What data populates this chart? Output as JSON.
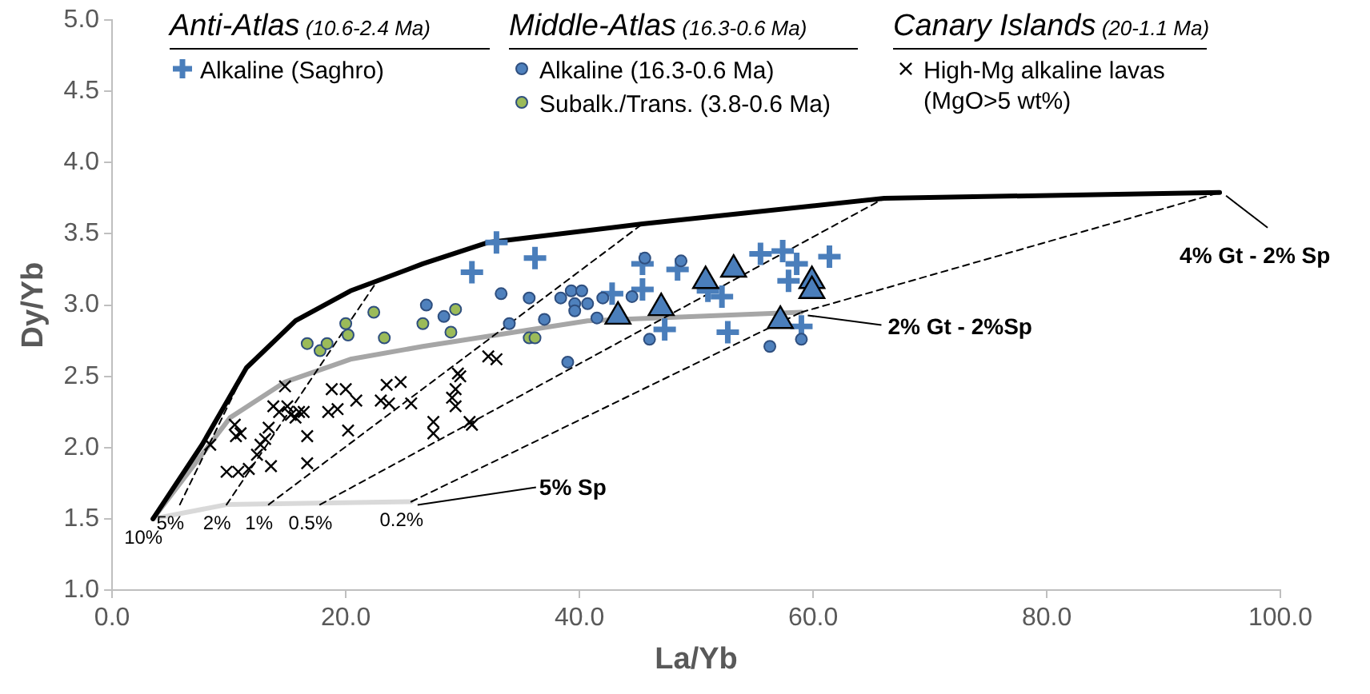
{
  "chart_data": {
    "type": "scatter",
    "xlabel": "La/Yb",
    "ylabel": "Dy/Yb",
    "xlim": [
      0,
      100
    ],
    "ylim": [
      1,
      5
    ],
    "xticks": [
      {
        "value": 0,
        "label": "0.0"
      },
      {
        "value": 20,
        "label": "20.0"
      },
      {
        "value": 40,
        "label": "40.0"
      },
      {
        "value": 60,
        "label": "60.0"
      },
      {
        "value": 80,
        "label": "80.0"
      },
      {
        "value": 100,
        "label": "100.0"
      }
    ],
    "yticks": [
      {
        "value": 1,
        "label": "1.0"
      },
      {
        "value": 1.5,
        "label": "1.5"
      },
      {
        "value": 2,
        "label": "2.0"
      },
      {
        "value": 2.5,
        "label": "2.5"
      },
      {
        "value": 3,
        "label": "3.0"
      },
      {
        "value": 3.5,
        "label": "3.5"
      },
      {
        "value": 4,
        "label": "4.0"
      },
      {
        "value": 4.5,
        "label": "4.5"
      },
      {
        "value": 5,
        "label": "5.0"
      }
    ],
    "legend": "top",
    "annotations": [
      "Anti-Atlas (10.6-2.4 Ma)",
      "Middle-Atlas (16.3-0.6 Ma)",
      "Canary Islands (20-1.1 Ma)",
      {
        "text": "4% Gt - 2% Sp",
        "x": 94.8,
        "y": 3.79
      },
      {
        "text": "2% Gt - 2%Sp",
        "x": 59,
        "y": 2.95
      },
      {
        "text": "5% Sp",
        "x": 25.6,
        "y": 1.62
      },
      {
        "text": "10%",
        "x": 3.5,
        "y": 1.5
      },
      {
        "text": "5%",
        "x": 5.8,
        "y": 1.6
      },
      {
        "text": "2%",
        "x": 9.8,
        "y": 1.6
      },
      {
        "text": "1%",
        "x": 13.4,
        "y": 1.6
      },
      {
        "text": "0.5%",
        "x": 17.8,
        "y": 1.6
      },
      {
        "text": "0.2%",
        "x": 25.6,
        "y": 1.62
      }
    ],
    "series": [
      {
        "name": "Alkaline (Saghro)",
        "marker": "plus",
        "color": "#4a7ebb",
        "x": [
          30.8,
          32.9,
          36.2,
          45.4,
          45.4,
          42.8,
          48.4,
          47.3,
          51.0,
          52.2,
          52.7,
          55.5,
          57.4,
          58.6,
          57.9,
          61.4,
          59.0
        ],
        "values": [
          3.23,
          3.44,
          3.33,
          3.29,
          3.11,
          3.08,
          3.25,
          2.83,
          3.1,
          3.06,
          2.81,
          3.36,
          3.38,
          3.29,
          3.17,
          3.34,
          2.85
        ]
      },
      {
        "name": "Alkaline (16.3-0.6 Ma)",
        "marker": "circle",
        "color": "#4f81bd",
        "x": [
          26.9,
          28.4,
          33.3,
          34.0,
          35.7,
          37.0,
          38.4,
          39.3,
          39.6,
          39.6,
          40.2,
          40.7,
          41.5,
          42.0,
          44.5,
          45.6,
          48.7,
          46.0,
          39.0,
          56.3,
          59.0
        ],
        "values": [
          3.0,
          2.92,
          3.08,
          2.87,
          3.05,
          2.9,
          3.05,
          3.1,
          3.01,
          2.96,
          3.1,
          3.01,
          2.91,
          3.05,
          3.06,
          3.33,
          3.31,
          2.76,
          2.6,
          2.71,
          2.76
        ]
      },
      {
        "name": "Subalk./Trans. (3.8-0.6 Ma)",
        "marker": "circle",
        "color": "#9bbb59",
        "x": [
          16.7,
          17.8,
          18.4,
          20.0,
          20.2,
          22.4,
          23.3,
          26.6,
          29.0,
          29.4,
          35.7,
          36.2
        ],
        "values": [
          2.73,
          2.68,
          2.73,
          2.87,
          2.79,
          2.95,
          2.77,
          2.87,
          2.81,
          2.97,
          2.77,
          2.77
        ]
      },
      {
        "name": "High-Mg alkaline lavas (MgO>5 wt%)",
        "marker": "cross",
        "color": "#000000",
        "x": [
          8.4,
          9.8,
          10.5,
          10.6,
          11.0,
          10.8,
          11.7,
          12.4,
          12.7,
          13.1,
          13.4,
          13.6,
          13.8,
          14.3,
          14.8,
          15.0,
          15.3,
          15.7,
          16.0,
          16.4,
          16.7,
          16.7,
          18.5,
          18.8,
          19.3,
          20.0,
          20.2,
          20.9,
          23.0,
          23.5,
          23.7,
          24.7,
          25.6,
          27.5,
          27.5,
          29.1,
          29.4,
          29.4,
          29.6,
          29.8,
          30.6,
          30.8,
          32.2,
          32.9
        ],
        "values": [
          2.02,
          1.83,
          2.16,
          2.08,
          2.1,
          1.83,
          1.85,
          1.95,
          2.02,
          2.06,
          2.14,
          1.87,
          2.29,
          2.25,
          2.43,
          2.29,
          2.23,
          2.21,
          2.25,
          2.25,
          2.08,
          1.89,
          2.25,
          2.41,
          2.27,
          2.41,
          2.12,
          2.33,
          2.33,
          2.44,
          2.31,
          2.46,
          2.31,
          2.18,
          2.1,
          2.35,
          2.29,
          2.41,
          2.52,
          2.5,
          2.18,
          2.16,
          2.64,
          2.62
        ]
      },
      {
        "marker": "triangle",
        "color": "#4a7ebb",
        "x": [
          43.3,
          47.0,
          50.8,
          53.2,
          57.2,
          59.9,
          59.9
        ],
        "values": [
          2.92,
          2.98,
          3.17,
          3.25,
          2.89,
          3.17,
          3.1
        ]
      },
      {
        "type": "line",
        "marker": "none",
        "line_style": "solid",
        "color": "#000000",
        "x": [
          3.5,
          7.7,
          11.5,
          15.7,
          20.4,
          22.7,
          26.6,
          32.2,
          45.4,
          66.1,
          94.8
        ],
        "values": [
          1.5,
          2.02,
          2.56,
          2.89,
          3.1,
          3.17,
          3.29,
          3.44,
          3.57,
          3.75,
          3.79
        ]
      },
      {
        "type": "line",
        "marker": "none",
        "line_style": "solid",
        "color": "#a6a6a6",
        "x": [
          3.5,
          10.1,
          14.8,
          20.4,
          26.6,
          40.7,
          59.0
        ],
        "values": [
          1.5,
          2.21,
          2.46,
          2.62,
          2.71,
          2.89,
          2.95
        ]
      },
      {
        "type": "line",
        "marker": "none",
        "line_style": "solid",
        "color": "#d9d9d9",
        "x": [
          3.5,
          9.8,
          25.6
        ],
        "values": [
          1.5,
          1.6,
          1.62
        ]
      },
      {
        "type": "line",
        "marker": "none",
        "line_style": "dashed",
        "color": "#000000",
        "x": [
          5.8,
          11.5
        ],
        "values": [
          1.6,
          2.56
        ]
      },
      {
        "type": "line",
        "marker": "none",
        "line_style": "dashed",
        "color": "#000000",
        "x": [
          9.8,
          22.7
        ],
        "values": [
          1.6,
          3.17
        ]
      },
      {
        "type": "line",
        "marker": "none",
        "line_style": "dashed",
        "color": "#000000",
        "x": [
          13.4,
          45.4
        ],
        "values": [
          1.6,
          3.57
        ]
      },
      {
        "type": "line",
        "marker": "none",
        "line_style": "dashed",
        "color": "#000000",
        "x": [
          17.8,
          66.1
        ],
        "values": [
          1.6,
          3.75
        ]
      },
      {
        "type": "line",
        "marker": "none",
        "line_style": "dashed",
        "color": "#000000",
        "x": [
          25.6,
          59.0
        ],
        "values": [
          1.62,
          2.95
        ]
      },
      {
        "type": "line",
        "marker": "none",
        "line_style": "dashed",
        "color": "#000000",
        "x": [
          59.0,
          94.8
        ],
        "values": [
          2.95,
          3.79
        ]
      }
    ]
  }
}
